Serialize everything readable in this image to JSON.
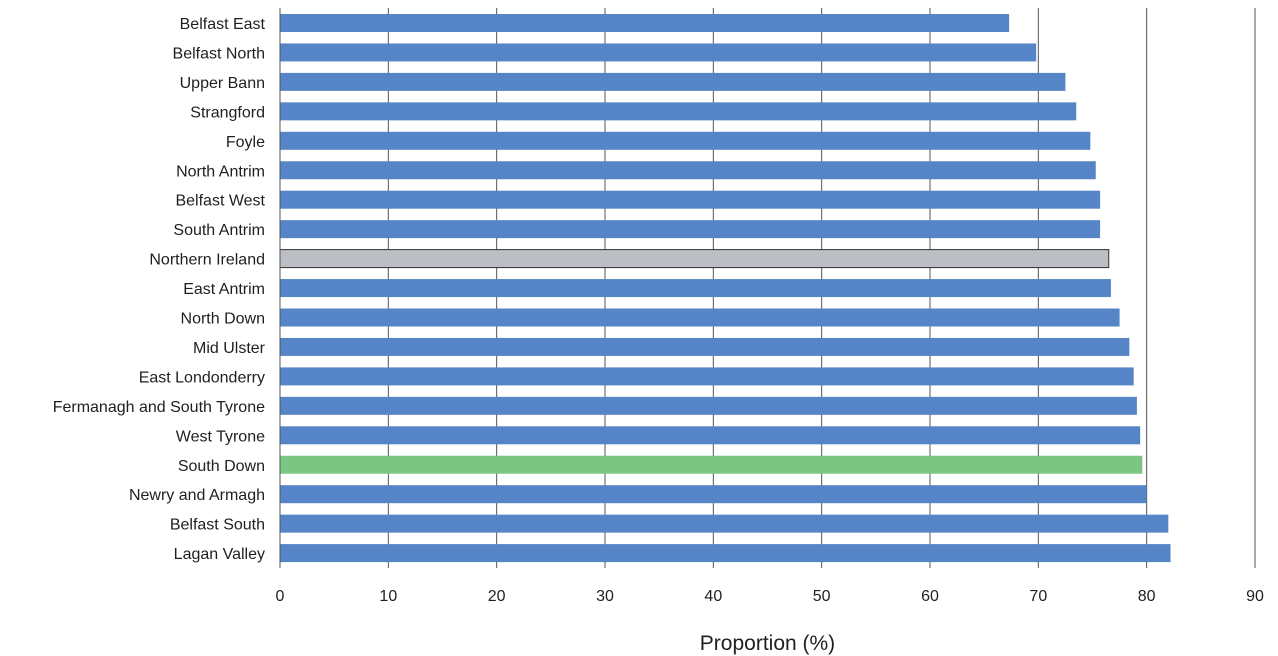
{
  "chart_data": {
    "type": "bar",
    "orientation": "horizontal",
    "title": "",
    "xlabel": "Proportion (%)",
    "ylabel": "",
    "xlim": [
      0,
      90
    ],
    "xticks": [
      0,
      10,
      20,
      30,
      40,
      50,
      60,
      70,
      80,
      90
    ],
    "grid": "vertical",
    "legend": "none",
    "categories": [
      "Belfast East",
      "Belfast North",
      "Upper Bann",
      "Strangford",
      "Foyle",
      "North Antrim",
      "Belfast West",
      "South Antrim",
      "Northern Ireland",
      "East Antrim",
      "North Down",
      "Mid Ulster",
      "East Londonderry",
      "Fermanagh and South Tyrone",
      "West Tyrone",
      "South Down",
      "Newry and Armagh",
      "Belfast South",
      "Lagan Valley"
    ],
    "series": [
      {
        "values": [
          67.3,
          69.8,
          72.5,
          73.5,
          74.8,
          75.3,
          75.7,
          75.7,
          76.5,
          76.7,
          77.5,
          78.4,
          78.8,
          79.1,
          79.4,
          79.6,
          80.0,
          82.0,
          82.2
        ]
      }
    ],
    "colors": {
      "default": "#5585c6",
      "Northern Ireland": "#bbbfc3",
      "South Down": "#7bc683",
      "gridline": "#555555",
      "axis": "#555555"
    }
  }
}
